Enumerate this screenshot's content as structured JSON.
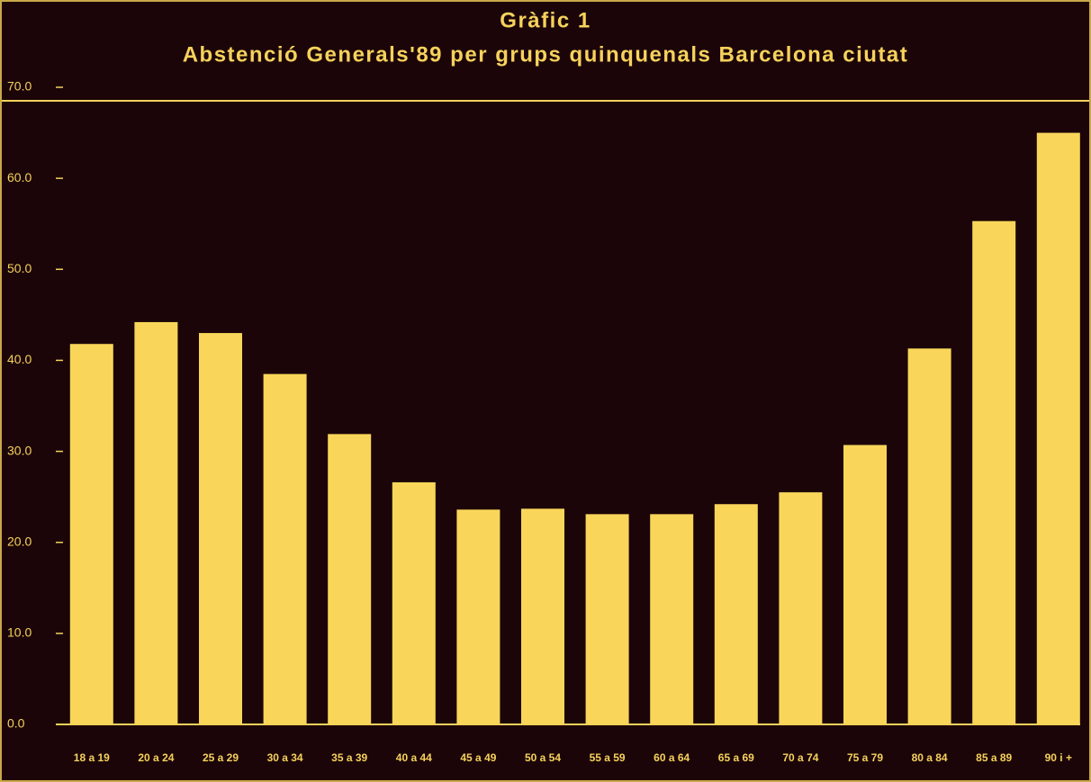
{
  "chart_data": {
    "type": "bar",
    "title": "Gràfic 1",
    "subtitle": "Abstenció Generals'89 per grups quinquenals Barcelona ciutat",
    "categories": [
      "18 a 19",
      "20 a 24",
      "25 a 29",
      "30 a 34",
      "35 a 39",
      "40 a 44",
      "45 a 49",
      "50 a 54",
      "55 a 59",
      "60 a 64",
      "65 a 69",
      "70 a 74",
      "75 a 79",
      "80 a 84",
      "85 a 89",
      "90 i +"
    ],
    "values": [
      41.8,
      44.2,
      43.0,
      38.5,
      31.9,
      26.6,
      23.6,
      23.7,
      23.1,
      23.1,
      24.2,
      25.5,
      30.7,
      41.3,
      55.3,
      65.0
    ],
    "color": "#f9d65a",
    "ylim": [
      0,
      70
    ],
    "yticks": [
      {
        "value": 0,
        "label": "0.0"
      },
      {
        "value": 10,
        "label": "10.0"
      },
      {
        "value": 20,
        "label": "20.0"
      },
      {
        "value": 30,
        "label": "30.0"
      },
      {
        "value": 40,
        "label": "40.0"
      },
      {
        "value": 50,
        "label": "50.0"
      },
      {
        "value": 60,
        "label": "60.0"
      },
      {
        "value": 70,
        "label": "70.0"
      }
    ],
    "grid": false
  }
}
